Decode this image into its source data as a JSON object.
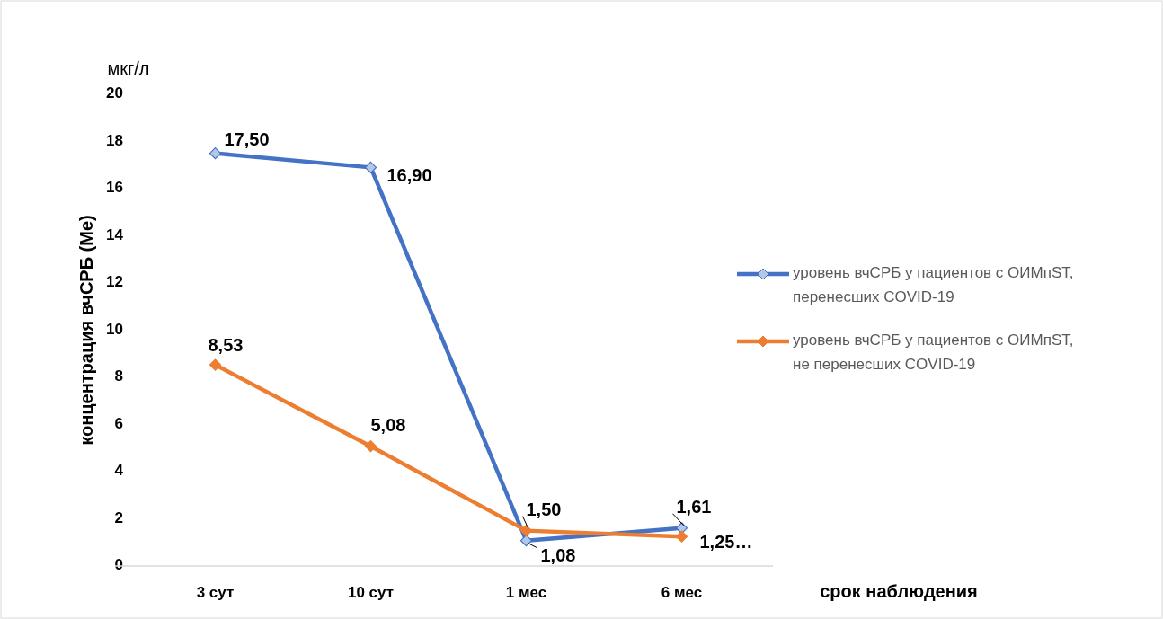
{
  "chart_data": {
    "type": "line",
    "ylabel": "концентрация вчСРБ (Me)",
    "xlabel": "срок наблюдения",
    "annotations": [
      "мкг/л"
    ],
    "categories": [
      "3 сут",
      "10 сут",
      "1 мес",
      "6 мес"
    ],
    "series": [
      {
        "name": "уровень вчСРБ у пациентов с ОИМпST, перенесших COVID-19",
        "color": "#4472c4",
        "values": [
          17.5,
          16.9,
          1.08,
          1.61
        ],
        "value_labels": [
          "17,50",
          "16,90",
          "1,08",
          "1,61"
        ]
      },
      {
        "name": "уровень вчСРБ у пациентов с ОИМпST, не перенесших COVID-19",
        "color": "#ed7d31",
        "values": [
          8.53,
          5.08,
          1.5,
          1.25
        ],
        "value_labels": [
          "8,53",
          "5,08",
          "1,50",
          "1,25…"
        ]
      }
    ],
    "ylim": [
      0,
      20
    ],
    "yticks": [
      0,
      2,
      4,
      6,
      8,
      10,
      12,
      14,
      16,
      18,
      20
    ],
    "grid": false,
    "legend": "right",
    "marker": "diamond",
    "line_style": "solid"
  }
}
